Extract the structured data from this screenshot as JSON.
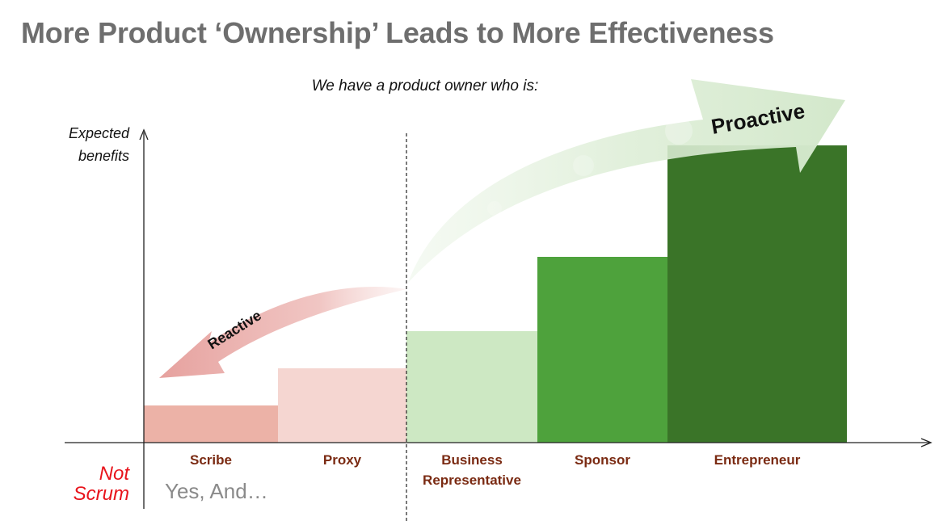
{
  "title": "More Product ‘Ownership’ Leads to More Effectiveness",
  "footnotes": {
    "not_line1": "Not",
    "not_line2": "Scrum",
    "yes_and": "Yes, And…"
  },
  "colors": {
    "title": "#6e6e6e",
    "category_label": "#7a2a12",
    "not_scrum": "#e8141c",
    "reactive_arrow": "#e9a9a6",
    "proactive_arrow": "#d6ead0"
  },
  "chart_data": {
    "type": "bar",
    "title": "",
    "subtitle": "We have a product owner who is:",
    "xlabel": "",
    "ylabel": "Expected benefits",
    "ylabel_lines": [
      "Expected",
      "benefits"
    ],
    "categories": [
      "Scribe",
      "Proxy",
      "Business Representative",
      "Sponsor",
      "Entrepreneur"
    ],
    "category_label_lines": [
      [
        "Scribe"
      ],
      [
        "Proxy"
      ],
      [
        "Business",
        "Representative"
      ],
      [
        "Sponsor"
      ],
      [
        "Entrepreneur"
      ]
    ],
    "values": [
      10,
      20,
      30,
      50,
      80
    ],
    "bar_colors": [
      "#ecb2a7",
      "#f5d6d1",
      "#cde8c3",
      "#4ea23c",
      "#3a7428"
    ],
    "ylim": [
      0,
      100
    ],
    "grid": false,
    "divider_after_category": 1,
    "annotations": [
      {
        "text": "Reactive",
        "direction": "left"
      },
      {
        "text": "Proactive",
        "direction": "right"
      }
    ]
  }
}
